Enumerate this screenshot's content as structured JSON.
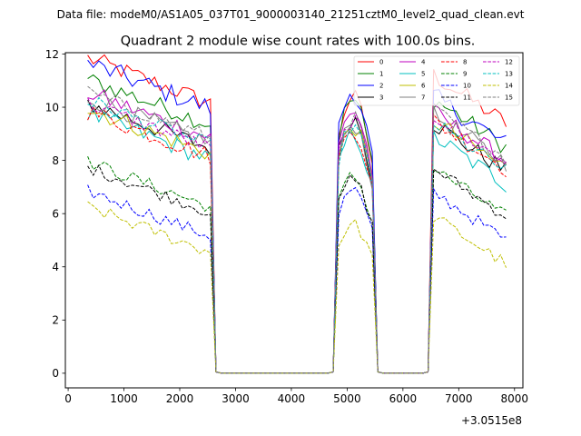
{
  "chart_data": {
    "type": "line",
    "suptitle": "Data file: modeM0/AS1A05_037T01_9000003140_21251cztM0_level2_quad_clean.evt",
    "title": "Quadrant 2 module wise count rates with 100.0s bins.",
    "xlabel": "",
    "ylabel": "",
    "x_offset_label": "+3.0515e8",
    "xlim": [
      -50,
      8150
    ],
    "ylim": [
      -0.55,
      12.05
    ],
    "xticks": [
      0,
      1000,
      2000,
      3000,
      4000,
      5000,
      6000,
      7000,
      8000
    ],
    "yticks": [
      0,
      2,
      4,
      6,
      8,
      10,
      12
    ],
    "legend_position": "top-right",
    "segments": [
      {
        "x_start": 350,
        "x_end": 2550
      },
      {
        "x_start": 4850,
        "x_end": 5450
      },
      {
        "x_start": 6550,
        "x_end": 7850
      }
    ],
    "gaps": [
      [
        2750,
        4650
      ],
      [
        5650,
        6350
      ]
    ],
    "series": [
      {
        "name": "0",
        "color": "#ff0000",
        "dash": "solid",
        "levels": [
          11.0,
          10.4,
          10.3
        ],
        "noise": 0.35
      },
      {
        "name": "1",
        "color": "#008000",
        "dash": "solid",
        "levels": [
          10.2,
          10.3,
          9.4
        ],
        "noise": 0.35
      },
      {
        "name": "2",
        "color": "#0000ff",
        "dash": "solid",
        "levels": [
          10.8,
          10.6,
          9.5
        ],
        "noise": 0.4
      },
      {
        "name": "3",
        "color": "#000000",
        "dash": "solid",
        "levels": [
          9.3,
          9.6,
          8.5
        ],
        "noise": 0.35
      },
      {
        "name": "4",
        "color": "#bf00bf",
        "dash": "solid",
        "levels": [
          9.7,
          9.9,
          8.9
        ],
        "noise": 0.35
      },
      {
        "name": "5",
        "color": "#00bfbf",
        "dash": "solid",
        "levels": [
          8.9,
          9.0,
          8.0
        ],
        "noise": 0.35
      },
      {
        "name": "6",
        "color": "#bfbf00",
        "dash": "solid",
        "levels": [
          9.1,
          9.3,
          8.6
        ],
        "noise": 0.35
      },
      {
        "name": "7",
        "color": "#808080",
        "dash": "solid",
        "levels": [
          9.5,
          9.4,
          8.8
        ],
        "noise": 0.35
      },
      {
        "name": "8",
        "color": "#ff0000",
        "dash": "dashed",
        "levels": [
          9.0,
          9.2,
          8.6
        ],
        "noise": 0.35
      },
      {
        "name": "9",
        "color": "#008000",
        "dash": "dashed",
        "levels": [
          7.1,
          7.4,
          6.8
        ],
        "noise": 0.25
      },
      {
        "name": "10",
        "color": "#0000ff",
        "dash": "dashed",
        "levels": [
          6.0,
          6.9,
          5.9
        ],
        "noise": 0.25
      },
      {
        "name": "11",
        "color": "#000000",
        "dash": "dashed",
        "levels": [
          6.9,
          7.3,
          6.8
        ],
        "noise": 0.25
      },
      {
        "name": "12",
        "color": "#bf00bf",
        "dash": "dashed",
        "levels": [
          9.3,
          9.5,
          8.8
        ],
        "noise": 0.3
      },
      {
        "name": "13",
        "color": "#00bfbf",
        "dash": "dashed",
        "levels": [
          9.4,
          9.3,
          8.5
        ],
        "noise": 0.3
      },
      {
        "name": "14",
        "color": "#bfbf00",
        "dash": "dashed",
        "levels": [
          5.4,
          5.6,
          5.0
        ],
        "noise": 0.25
      },
      {
        "name": "15",
        "color": "#808080",
        "dash": "dashed",
        "levels": [
          9.7,
          9.6,
          9.0
        ],
        "noise": 0.3
      }
    ]
  }
}
